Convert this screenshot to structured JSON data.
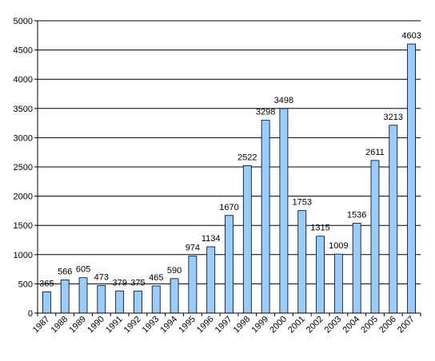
{
  "chart_data": {
    "type": "bar",
    "title": "",
    "xlabel": "",
    "ylabel": "",
    "categories": [
      "1987",
      "1988",
      "1989",
      "1990",
      "1991",
      "1992",
      "1993",
      "1994",
      "1995",
      "1996",
      "1997",
      "1998",
      "1999",
      "2000",
      "2001",
      "2002",
      "2003",
      "2004",
      "2005",
      "2006",
      "2007"
    ],
    "values": [
      365,
      566,
      605,
      473,
      379,
      375,
      465,
      590,
      974,
      1134,
      1670,
      2522,
      3298,
      3498,
      1753,
      1315,
      1009,
      1536,
      2611,
      3213,
      4603
    ],
    "data_labels": [
      "365",
      "566",
      "605",
      "473",
      "379",
      "375",
      "465",
      "590",
      "974",
      "1134",
      "1670",
      "2522",
      "3298",
      "3498",
      "1753",
      "1315",
      "1009",
      "1536",
      "2611",
      "3213",
      "4603"
    ],
    "ylim": [
      0,
      5000
    ],
    "yticks": [
      0,
      500,
      1000,
      1500,
      2000,
      2500,
      3000,
      3500,
      4000,
      4500,
      5000
    ],
    "ytick_labels": [
      "0",
      "500",
      "1000",
      "1500",
      "2000",
      "2500",
      "3000",
      "3500",
      "4000",
      "4500",
      "5000"
    ],
    "grid": true,
    "legend": "none",
    "colors": {
      "bar_fill": "#99ccff",
      "bar_stroke": "#000000",
      "grid": "#000000",
      "axis": "#000000",
      "background": "#ffffff"
    }
  }
}
